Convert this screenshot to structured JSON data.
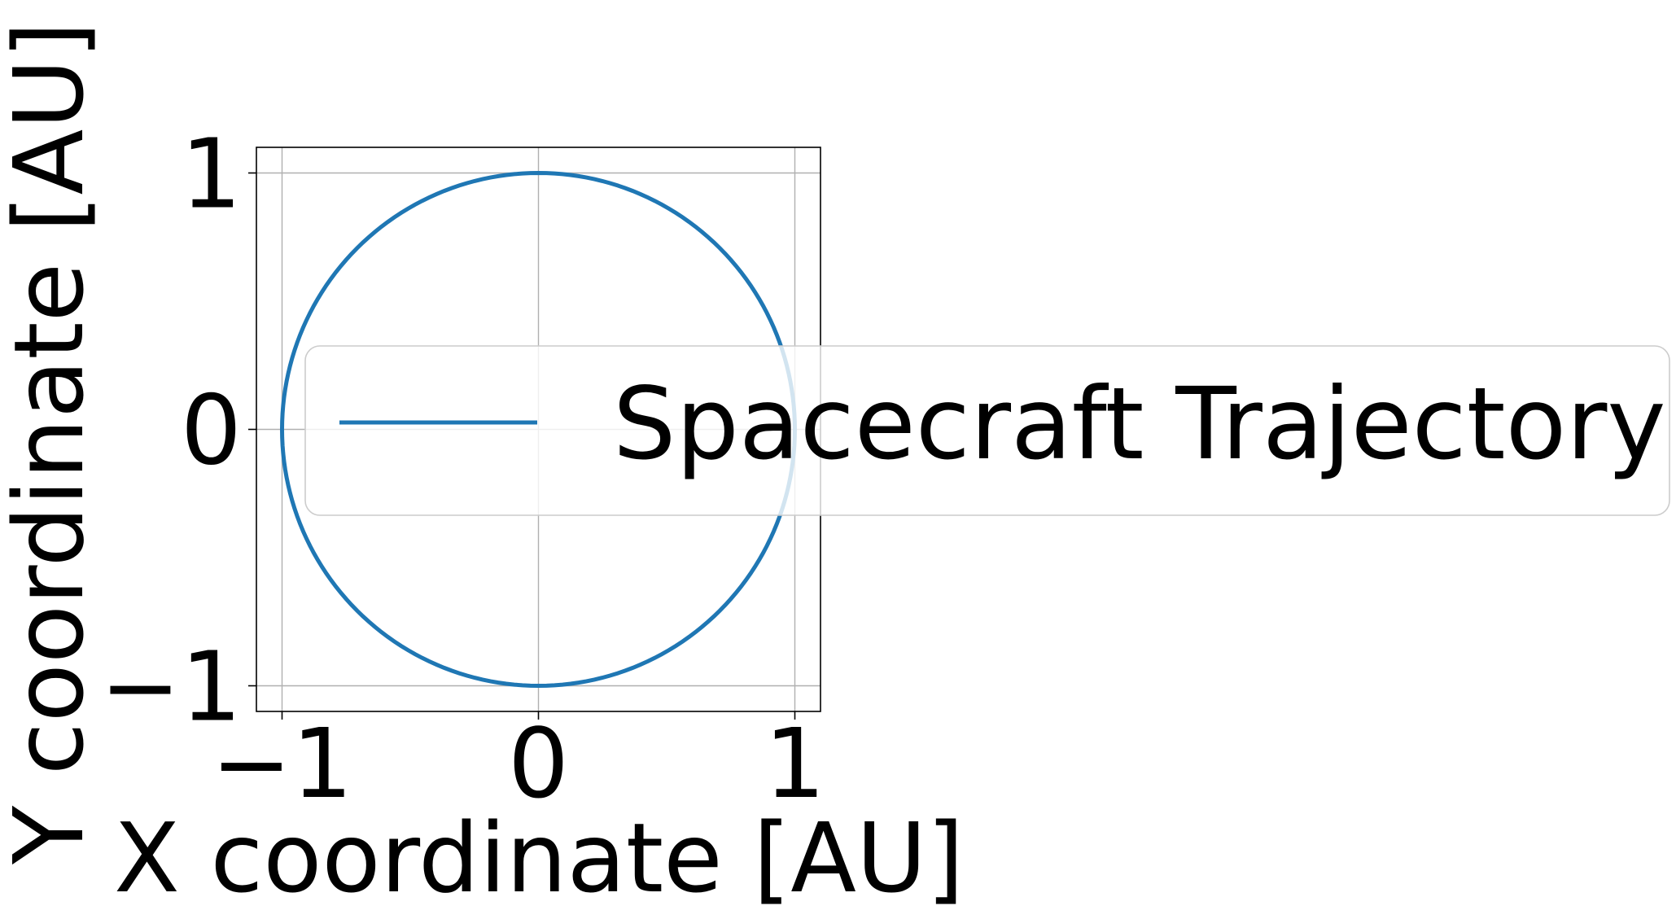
{
  "chart_data": {
    "type": "line",
    "title": "",
    "xlabel": "X coordinate [AU]",
    "ylabel": "Y coordinate [AU]",
    "xlim": [
      -1.1,
      1.1
    ],
    "ylim": [
      -1.1,
      1.1
    ],
    "grid": true,
    "legend_position": "right",
    "x_ticks": [
      -1,
      0,
      1
    ],
    "y_ticks": [
      -1,
      0,
      1
    ],
    "x_tick_labels": [
      "−1",
      "0",
      "1"
    ],
    "y_tick_labels": [
      "−1",
      "0",
      "1"
    ],
    "series": [
      {
        "name": "Spacecraft Trajectory",
        "color": "#1f77b4",
        "shape": "circle",
        "center": [
          0,
          0
        ],
        "radius": 1,
        "x": [
          1,
          0.7071,
          0,
          -0.7071,
          -1,
          -0.7071,
          0,
          0.7071,
          1
        ],
        "y": [
          0,
          0.7071,
          1,
          0.7071,
          0,
          -0.7071,
          -1,
          -0.7071,
          0
        ]
      }
    ]
  }
}
